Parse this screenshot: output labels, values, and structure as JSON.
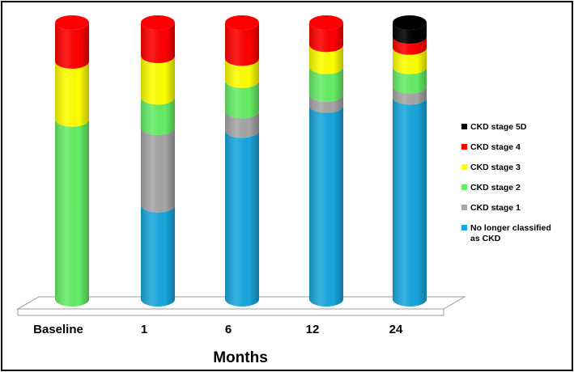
{
  "chart_data": {
    "type": "bar",
    "stacked": true,
    "style": "3d-cylinder",
    "title": "",
    "xlabel": "Months",
    "ylabel": "",
    "ylim": [
      0,
      100
    ],
    "categories": [
      "Baseline",
      "1",
      "6",
      "12",
      "24"
    ],
    "series": [
      {
        "name": "No longer classified as CKD",
        "color": "#1aa7dd",
        "values": [
          0,
          34,
          61,
          70,
          73
        ]
      },
      {
        "name": "CKD stage 1",
        "color": "#a6a6a6",
        "values": [
          0,
          28,
          7,
          4,
          4
        ]
      },
      {
        "name": "CKD stage 2",
        "color": "#66ee66",
        "values": [
          65,
          11,
          11,
          10,
          7
        ]
      },
      {
        "name": "CKD stage 3",
        "color": "#ffff00",
        "values": [
          21,
          15,
          8,
          8,
          7
        ]
      },
      {
        "name": "CKD stage 4",
        "color": "#ff0000",
        "values": [
          14,
          12,
          13,
          8,
          4
        ]
      },
      {
        "name": "CKD stage 5D",
        "color": "#000000",
        "values": [
          0,
          0,
          0,
          0,
          5
        ]
      }
    ],
    "legend_position": "right",
    "grid": false
  }
}
